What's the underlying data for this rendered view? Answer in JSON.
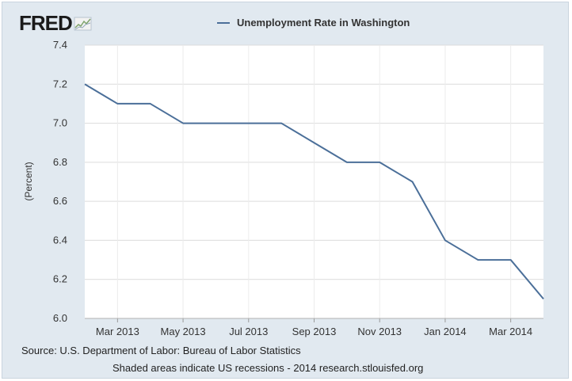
{
  "logo": {
    "text": "FRED"
  },
  "legend": {
    "series_name": "Unemployment Rate in Washington",
    "color": "#4b6f99"
  },
  "footer": {
    "source": "Source: U.S. Department of Labor: Bureau of Labor Statistics",
    "note": "Shaded areas indicate US recessions - 2014 research.stlouisfed.org"
  },
  "chart_data": {
    "type": "line",
    "ylabel": "(Percent)",
    "ylim": [
      6.0,
      7.4
    ],
    "yticks": [
      6.0,
      6.2,
      6.4,
      6.6,
      6.8,
      7.0,
      7.2,
      7.4
    ],
    "grid": true,
    "x": [
      "2013-02",
      "2013-03",
      "2013-04",
      "2013-05",
      "2013-06",
      "2013-07",
      "2013-08",
      "2013-09",
      "2013-10",
      "2013-11",
      "2013-12",
      "2014-01",
      "2014-02",
      "2014-03",
      "2014-04"
    ],
    "xtick_labels": [
      "Mar 2013",
      "May 2013",
      "Jul 2013",
      "Sep 2013",
      "Nov 2013",
      "Jan 2014",
      "Mar 2014"
    ],
    "series": [
      {
        "name": "Unemployment Rate in Washington",
        "color": "#4b6f99",
        "values": [
          7.2,
          7.1,
          7.1,
          7.0,
          7.0,
          7.0,
          7.0,
          6.9,
          6.8,
          6.8,
          6.7,
          6.4,
          6.3,
          6.3,
          6.1
        ]
      }
    ]
  }
}
